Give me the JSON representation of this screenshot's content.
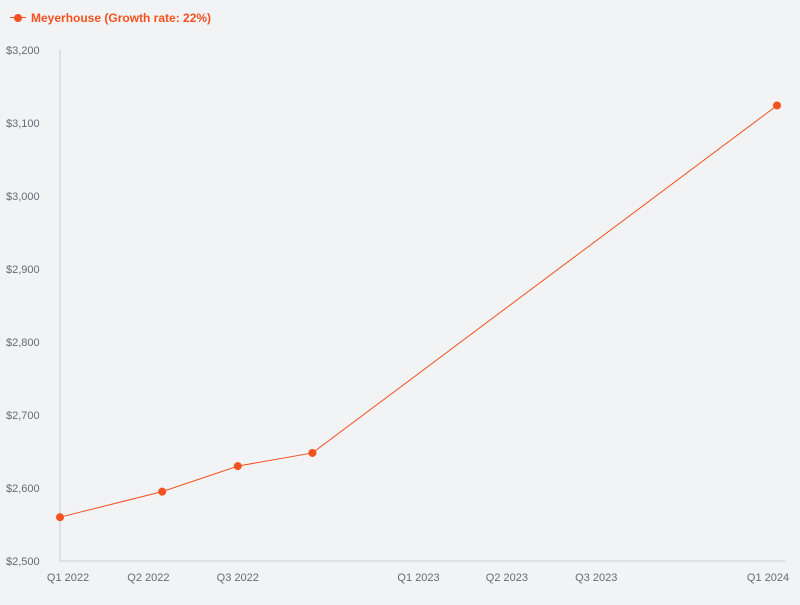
{
  "chart_data": {
    "type": "line",
    "legend": {
      "position": "top-left",
      "entries": [
        "Meyerhouse (Growth rate: 22%)"
      ]
    },
    "series": [
      {
        "name": "Meyerhouse (Growth rate: 22%)",
        "color": "#f4511e",
        "points": [
          {
            "x": "2022-01-01",
            "y": 2560
          },
          {
            "x": "2022-04-15",
            "y": 2595
          },
          {
            "x": "2022-07-01",
            "y": 2630
          },
          {
            "x": "2022-09-15",
            "y": 2648
          },
          {
            "x": "2024-01-01",
            "y": 3124
          }
        ]
      }
    ],
    "x_ticks": [
      {
        "label": "Q1 2022",
        "x": "2022-01-01"
      },
      {
        "label": "Q2 2022",
        "x": "2022-04-01"
      },
      {
        "label": "Q3 2022",
        "x": "2022-07-01"
      },
      {
        "label": "Q1 2023",
        "x": "2023-01-01"
      },
      {
        "label": "Q2 2023",
        "x": "2023-04-01"
      },
      {
        "label": "Q3 2023",
        "x": "2023-07-01"
      },
      {
        "label": "Q1 2024",
        "x": "2024-01-01"
      }
    ],
    "xlim": [
      "2022-01-01",
      "2024-01-01"
    ],
    "ylim": [
      2500,
      3200
    ],
    "y_ticks": [
      2500,
      2600,
      2700,
      2800,
      2900,
      3000,
      3100,
      3200
    ],
    "y_tick_labels": [
      "$2,500",
      "$2,600",
      "$2,700",
      "$2,800",
      "$2,900",
      "$3,000",
      "$3,100",
      "$3,200"
    ],
    "grid": false,
    "xlabel": "",
    "ylabel": ""
  }
}
